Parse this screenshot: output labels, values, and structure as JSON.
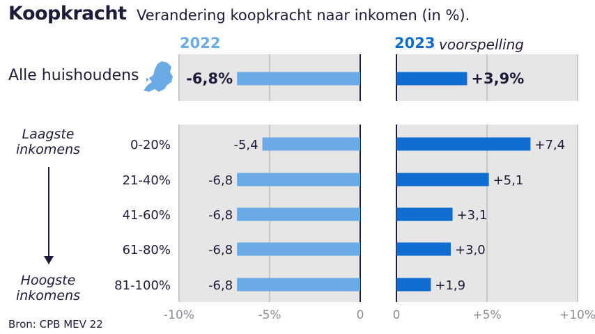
{
  "title": "Koopkracht",
  "subtitle": "Verandering koopkracht naar inkomen (in %).",
  "source": "Bron: CPB MEV 22",
  "low_income_label": [
    "Laagste",
    "inkomens"
  ],
  "high_income_label": [
    "Hoogste",
    "inkomens"
  ],
  "colors": {
    "y2022": "#6aaae6",
    "y2023": "#0f6cd0",
    "panel_bg": "#e6e6e6",
    "text": "#1c1c3a"
  },
  "map_icon": "netherlands-map-icon",
  "chart_data": [
    {
      "type": "bar",
      "title": "2022",
      "categories": [
        "Alle huishoudens",
        "0-20%",
        "21-40%",
        "41-60%",
        "61-80%",
        "81-100%"
      ],
      "values": [
        -6.8,
        -5.4,
        -6.8,
        -6.8,
        -6.8,
        -6.8
      ],
      "value_labels": [
        "-6,8%",
        "-5,4",
        "-6,8",
        "-6,8",
        "-6,8",
        "-6,8"
      ],
      "xlim": [
        -10,
        0
      ],
      "ticks": [
        -10,
        -5,
        0
      ],
      "tick_labels": [
        "-10%",
        "-5%",
        "0"
      ],
      "grid": true
    },
    {
      "type": "bar",
      "title": "2023",
      "subtitle": "voorspelling",
      "categories": [
        "Alle huishoudens",
        "0-20%",
        "21-40%",
        "41-60%",
        "61-80%",
        "81-100%"
      ],
      "values": [
        3.9,
        7.4,
        5.1,
        3.1,
        3.0,
        1.9
      ],
      "value_labels": [
        "+3,9%",
        "+7,4",
        "+5,1",
        "+3,1",
        "+3,0",
        "+1,9"
      ],
      "xlim": [
        0,
        10
      ],
      "ticks": [
        0,
        5,
        10
      ],
      "tick_labels": [
        "0",
        "+5%",
        "+10%"
      ],
      "grid": true
    }
  ]
}
